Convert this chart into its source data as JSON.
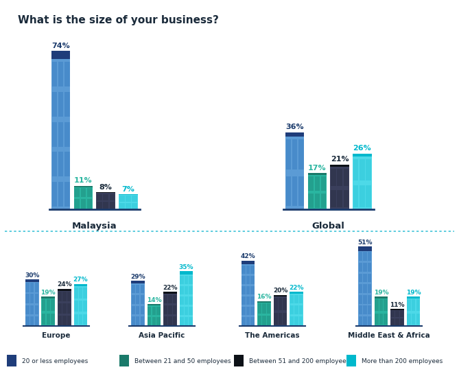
{
  "title": "What is the size of your business?",
  "top_groups": [
    {
      "label": "Malaysia",
      "values": [
        74,
        11,
        8,
        7
      ]
    },
    {
      "label": "Global",
      "values": [
        36,
        17,
        21,
        26
      ]
    }
  ],
  "bottom_groups": [
    {
      "label": "Europe",
      "values": [
        30,
        19,
        24,
        27
      ]
    },
    {
      "label": "Asia Pacific",
      "values": [
        29,
        14,
        22,
        35
      ]
    },
    {
      "label": "The Americas",
      "values": [
        42,
        16,
        20,
        22
      ]
    },
    {
      "label": "Middle East & Africa",
      "values": [
        51,
        19,
        11,
        19
      ]
    }
  ],
  "legend_labels": [
    "20 or less employees",
    "Between 21 and 50 employees",
    "Between 51 and 200 employees",
    "More than 200 employees"
  ],
  "bar_body_colors": [
    "#5b9bd5",
    "#2ab5a0",
    "#3a3f5c",
    "#4dd9e8"
  ],
  "bar_roof_colors": [
    "#1f3d7a",
    "#1a7a6a",
    "#0d1117",
    "#00b8cc"
  ],
  "bar_grid_colors": [
    "#3a7fc1",
    "#1e9080",
    "#2a2f45",
    "#2ec8d8"
  ],
  "value_colors": [
    "#1a3a6b",
    "#2ab5a0",
    "#1a2a3a",
    "#00b8cc"
  ],
  "label_color": "#1a2a3a",
  "line_color": "#1a3a6b",
  "divider_color": "#40c4d8",
  "background": "#ffffff"
}
